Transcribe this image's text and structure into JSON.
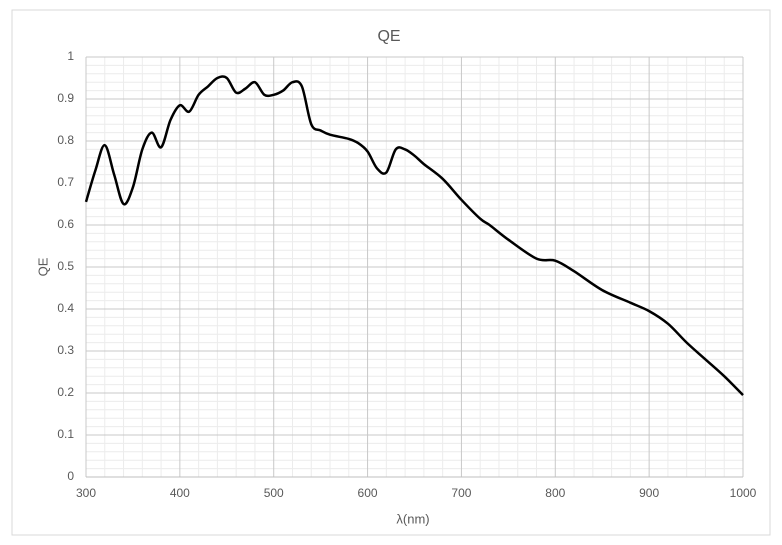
{
  "chart_data": {
    "type": "line",
    "title": "QE",
    "x_label": "λ(nm)",
    "y_label": "QE",
    "x": [
      300,
      310,
      320,
      330,
      340,
      350,
      360,
      370,
      380,
      390,
      400,
      410,
      420,
      430,
      440,
      450,
      460,
      470,
      480,
      490,
      500,
      510,
      520,
      530,
      540,
      550,
      560,
      580,
      590,
      600,
      610,
      620,
      630,
      640,
      650,
      660,
      680,
      700,
      720,
      730,
      750,
      780,
      800,
      820,
      850,
      880,
      900,
      920,
      940,
      960,
      980,
      1000
    ],
    "values": [
      0.655,
      0.73,
      0.79,
      0.72,
      0.65,
      0.69,
      0.78,
      0.82,
      0.785,
      0.85,
      0.885,
      0.87,
      0.91,
      0.93,
      0.95,
      0.95,
      0.915,
      0.925,
      0.94,
      0.91,
      0.91,
      0.92,
      0.94,
      0.93,
      0.84,
      0.825,
      0.815,
      0.805,
      0.795,
      0.775,
      0.735,
      0.725,
      0.78,
      0.78,
      0.765,
      0.745,
      0.71,
      0.66,
      0.615,
      0.6,
      0.565,
      0.52,
      0.515,
      0.49,
      0.445,
      0.415,
      0.395,
      0.365,
      0.32,
      0.28,
      0.24,
      0.195
    ],
    "color": "#000000",
    "xlim": [
      300,
      1000
    ],
    "xticks": [
      300,
      400,
      500,
      600,
      700,
      800,
      900,
      1000
    ],
    "ylim": [
      0,
      1
    ],
    "yticks": [
      0,
      0.1,
      0.2,
      0.3,
      0.4,
      0.5,
      0.6,
      0.7,
      0.8,
      0.9,
      1
    ],
    "grid": true,
    "minor_grid": true
  }
}
